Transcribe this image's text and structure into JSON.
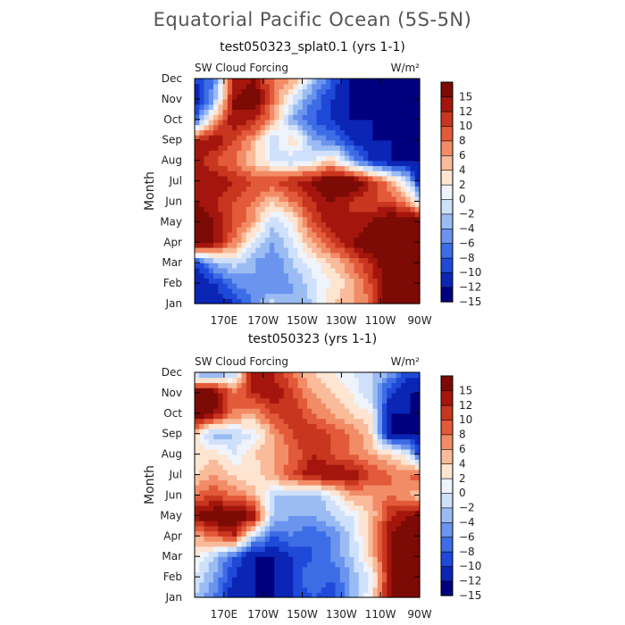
{
  "title": "Equatorial Pacific Ocean (5S-5N)",
  "chart_data": [
    {
      "type": "heatmap",
      "title": "test050323_splat0.1 (yrs 1-1)",
      "left_label": "SW Cloud Forcing",
      "right_label": "W/m²",
      "ylabel": "Month",
      "x_ticks": [
        "170E",
        "170W",
        "150W",
        "130W",
        "110W",
        "90W"
      ],
      "x_tick_lons": [
        170,
        190,
        210,
        230,
        250,
        270
      ],
      "xlim": [
        155,
        270
      ],
      "y_ticks": [
        "Jan",
        "Feb",
        "Mar",
        "Apr",
        "May",
        "Jun",
        "Jul",
        "Aug",
        "Sep",
        "Oct",
        "Nov",
        "Dec"
      ],
      "levels": [
        -15,
        -12,
        -10,
        -8,
        -6,
        -4,
        -2,
        0,
        2,
        4,
        6,
        8,
        10,
        12,
        15
      ],
      "colorbar_labels": [
        "15",
        "12",
        "10",
        "8",
        "6",
        "4",
        "2",
        "0",
        "−2",
        "−4",
        "−6",
        "−8",
        "−10",
        "−12",
        "−15"
      ],
      "colors": [
        "#00007f",
        "#0b25b5",
        "#1f49d8",
        "#3d6de6",
        "#6a94ee",
        "#9bbcf3",
        "#cfe0fa",
        "#eef3fc",
        "#fde5d2",
        "#f9bb9a",
        "#f28c66",
        "#e25a3a",
        "#c8361f",
        "#a4160d",
        "#7c0a05"
      ],
      "lons": [
        155,
        165,
        175,
        185,
        195,
        205,
        215,
        225,
        235,
        245,
        255,
        265,
        270
      ],
      "grid": [
        [
          -15,
          -15,
          -12,
          -8,
          -3,
          -6,
          -4,
          2,
          4,
          6,
          15,
          15,
          15
        ],
        [
          -15,
          -12,
          -8,
          -6,
          -8,
          -6,
          -3,
          0,
          3,
          8,
          15,
          15,
          15
        ],
        [
          -12,
          -6,
          -3,
          -6,
          -8,
          -4,
          -1,
          2,
          6,
          10,
          15,
          15,
          15
        ],
        [
          15,
          12,
          6,
          -2,
          -6,
          -2,
          4,
          8,
          12,
          15,
          15,
          15,
          15
        ],
        [
          15,
          12,
          8,
          4,
          -4,
          0,
          8,
          12,
          10,
          12,
          15,
          15,
          15
        ],
        [
          12,
          10,
          8,
          6,
          2,
          6,
          10,
          12,
          10,
          8,
          8,
          4,
          -2
        ],
        [
          10,
          12,
          10,
          8,
          8,
          10,
          12,
          15,
          15,
          10,
          4,
          -4,
          -15
        ],
        [
          12,
          8,
          6,
          2,
          -2,
          -4,
          -2,
          2,
          -6,
          -12,
          -15,
          -15,
          -15
        ],
        [
          10,
          12,
          8,
          4,
          -4,
          2,
          -6,
          -8,
          -12,
          -15,
          -15,
          -15,
          -15
        ],
        [
          -10,
          4,
          12,
          10,
          4,
          -6,
          -10,
          -12,
          -15,
          -15,
          -15,
          -15,
          -15
        ],
        [
          -15,
          -6,
          12,
          15,
          6,
          -2,
          -8,
          -12,
          -15,
          -15,
          -15,
          -15,
          -15
        ],
        [
          -12,
          -8,
          10,
          12,
          6,
          4,
          -4,
          -10,
          -15,
          -15,
          -15,
          -15,
          -15
        ]
      ]
    },
    {
      "type": "heatmap",
      "title": "test050323 (yrs 1-1)",
      "left_label": "SW Cloud Forcing",
      "right_label": "W/m²",
      "ylabel": "Month",
      "x_ticks": [
        "170E",
        "170W",
        "150W",
        "130W",
        "110W",
        "90W"
      ],
      "x_tick_lons": [
        170,
        190,
        210,
        230,
        250,
        270
      ],
      "xlim": [
        155,
        270
      ],
      "y_ticks": [
        "Jan",
        "Feb",
        "Mar",
        "Apr",
        "May",
        "Jun",
        "Jul",
        "Aug",
        "Sep",
        "Oct",
        "Nov",
        "Dec"
      ],
      "levels": [
        -15,
        -12,
        -10,
        -8,
        -6,
        -4,
        -2,
        0,
        2,
        4,
        6,
        8,
        10,
        12,
        15
      ],
      "colorbar_labels": [
        "15",
        "12",
        "10",
        "8",
        "6",
        "4",
        "2",
        "0",
        "−2",
        "−4",
        "−6",
        "−8",
        "−10",
        "−12",
        "−15"
      ],
      "colors": [
        "#00007f",
        "#0b25b5",
        "#1f49d8",
        "#3d6de6",
        "#6a94ee",
        "#9bbcf3",
        "#cfe0fa",
        "#eef3fc",
        "#fde5d2",
        "#f9bb9a",
        "#f28c66",
        "#e25a3a",
        "#c8361f",
        "#a4160d",
        "#7c0a05"
      ],
      "lons": [
        155,
        165,
        175,
        185,
        195,
        205,
        215,
        225,
        235,
        245,
        255,
        265,
        270
      ],
      "grid": [
        [
          -4,
          -8,
          -15,
          -15,
          -15,
          -12,
          -10,
          -12,
          -6,
          0,
          12,
          15,
          15
        ],
        [
          -2,
          -6,
          -12,
          -15,
          -15,
          -12,
          -8,
          -10,
          -6,
          -2,
          12,
          15,
          15
        ],
        [
          0,
          -4,
          -10,
          -15,
          -15,
          -12,
          -10,
          -8,
          -4,
          2,
          12,
          15,
          15
        ],
        [
          4,
          6,
          10,
          -4,
          -10,
          -8,
          -10,
          -8,
          -4,
          4,
          12,
          15,
          15
        ],
        [
          12,
          15,
          15,
          12,
          -4,
          -6,
          -6,
          -4,
          -2,
          2,
          10,
          12,
          15
        ],
        [
          6,
          8,
          6,
          4,
          -4,
          -4,
          -6,
          -2,
          4,
          4,
          6,
          4,
          2
        ],
        [
          2,
          4,
          2,
          0,
          4,
          8,
          12,
          12,
          12,
          8,
          6,
          6,
          8
        ],
        [
          0,
          2,
          -2,
          2,
          4,
          6,
          10,
          8,
          6,
          4,
          2,
          -2,
          -12
        ],
        [
          2,
          -6,
          -4,
          -2,
          4,
          8,
          10,
          8,
          6,
          2,
          -15,
          -15,
          -15
        ],
        [
          15,
          12,
          6,
          4,
          8,
          10,
          6,
          4,
          2,
          0,
          -15,
          -15,
          -15
        ],
        [
          15,
          15,
          6,
          10,
          12,
          8,
          4,
          2,
          0,
          -4,
          -12,
          -15,
          -15
        ],
        [
          -6,
          -8,
          -4,
          12,
          10,
          6,
          2,
          0,
          -2,
          -4,
          -6,
          -12,
          -10
        ]
      ]
    }
  ]
}
